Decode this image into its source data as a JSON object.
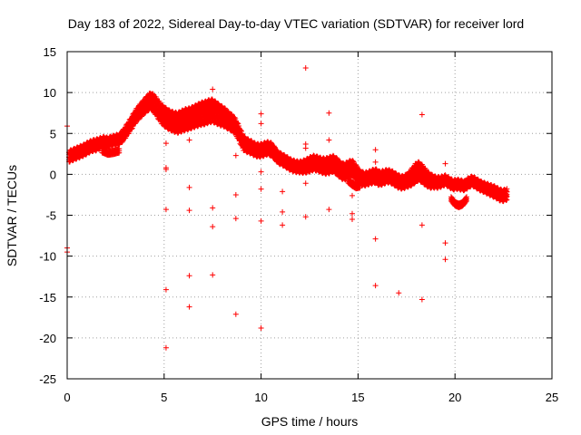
{
  "chart_data": {
    "type": "scatter",
    "title": "Day 183 of 2022, Sidereal Day-to-day VTEC variation (SDTVAR) for receiver lord",
    "xlabel": "GPS time / hours",
    "ylabel": "SDTVAR / TECUs",
    "xlim": [
      0,
      25
    ],
    "ylim": [
      -25,
      15
    ],
    "xticks": [
      0,
      5,
      10,
      15,
      20,
      25
    ],
    "xtick_labels": [
      "0",
      "5",
      "10",
      "15",
      "20",
      "25"
    ],
    "yticks": [
      -25,
      -20,
      -15,
      -10,
      -5,
      0,
      5,
      10,
      15
    ],
    "ytick_labels": [
      "-25",
      "-20",
      "-15",
      "-10",
      "-5",
      "0",
      "5",
      "10",
      "15"
    ],
    "grid": true,
    "marker": "+",
    "colors": {
      "series": "#ff0000",
      "grid": "#a0a0a0",
      "axis": "#000000"
    },
    "series": [
      {
        "name": "SDTVAR",
        "trace": [
          [
            0.1,
            2.2
          ],
          [
            0.3,
            2.4
          ],
          [
            0.5,
            2.6
          ],
          [
            0.7,
            2.8
          ],
          [
            0.9,
            3.0
          ],
          [
            1.1,
            3.3
          ],
          [
            1.3,
            3.5
          ],
          [
            1.5,
            3.6
          ],
          [
            1.7,
            3.8
          ],
          [
            1.9,
            4.0
          ],
          [
            2.1,
            3.9
          ],
          [
            2.3,
            4.1
          ],
          [
            2.5,
            4.2
          ],
          [
            2.7,
            4.3
          ],
          [
            2.9,
            4.8
          ],
          [
            3.1,
            5.5
          ],
          [
            3.3,
            6.2
          ],
          [
            3.5,
            7.0
          ],
          [
            3.7,
            7.6
          ],
          [
            3.9,
            8.1
          ],
          [
            4.1,
            8.6
          ],
          [
            4.3,
            9.0
          ],
          [
            4.5,
            8.6
          ],
          [
            4.7,
            7.9
          ],
          [
            4.9,
            7.3
          ],
          [
            5.1,
            6.9
          ],
          [
            5.3,
            6.6
          ],
          [
            5.5,
            6.4
          ],
          [
            5.7,
            6.3
          ],
          [
            5.9,
            6.5
          ],
          [
            6.1,
            6.7
          ],
          [
            6.3,
            6.8
          ],
          [
            6.5,
            7.0
          ],
          [
            6.7,
            7.2
          ],
          [
            6.9,
            7.4
          ],
          [
            7.1,
            7.5
          ],
          [
            7.3,
            7.7
          ],
          [
            7.5,
            7.8
          ],
          [
            7.7,
            7.5
          ],
          [
            7.9,
            7.2
          ],
          [
            8.1,
            7.0
          ],
          [
            8.3,
            6.6
          ],
          [
            8.5,
            6.3
          ],
          [
            8.7,
            5.8
          ],
          [
            8.9,
            4.8
          ],
          [
            9.1,
            3.8
          ],
          [
            9.3,
            3.5
          ],
          [
            9.5,
            3.3
          ],
          [
            9.7,
            3.0
          ],
          [
            9.9,
            2.9
          ],
          [
            10.1,
            3.0
          ],
          [
            10.3,
            3.2
          ],
          [
            10.5,
            3.1
          ],
          [
            10.7,
            2.6
          ],
          [
            10.9,
            2.0
          ],
          [
            11.1,
            1.8
          ],
          [
            11.3,
            1.5
          ],
          [
            11.5,
            1.2
          ],
          [
            11.7,
            1.0
          ],
          [
            11.9,
            0.9
          ],
          [
            12.1,
            0.9
          ],
          [
            12.3,
            1.0
          ],
          [
            12.5,
            1.2
          ],
          [
            12.7,
            1.4
          ],
          [
            12.9,
            1.3
          ],
          [
            13.1,
            1.1
          ],
          [
            13.3,
            1.0
          ],
          [
            13.5,
            1.1
          ],
          [
            13.7,
            1.3
          ],
          [
            13.9,
            1.0
          ],
          [
            14.1,
            0.5
          ],
          [
            14.3,
            0.3
          ],
          [
            14.5,
            0.6
          ],
          [
            14.7,
            0.8
          ],
          [
            14.9,
            0.2
          ],
          [
            15.1,
            -0.4
          ],
          [
            15.3,
            -0.6
          ],
          [
            15.5,
            -0.5
          ],
          [
            15.7,
            -0.3
          ],
          [
            15.9,
            -0.2
          ],
          [
            16.1,
            -0.5
          ],
          [
            16.3,
            -0.4
          ],
          [
            16.5,
            -0.2
          ],
          [
            16.7,
            -0.3
          ],
          [
            16.9,
            -0.6
          ],
          [
            17.1,
            -0.9
          ],
          [
            17.3,
            -1.0
          ],
          [
            17.5,
            -0.8
          ],
          [
            17.7,
            -0.5
          ],
          [
            17.9,
            0.0
          ],
          [
            18.1,
            0.4
          ],
          [
            18.3,
            0.1
          ],
          [
            18.5,
            -0.4
          ],
          [
            18.7,
            -0.8
          ],
          [
            18.9,
            -0.9
          ],
          [
            19.1,
            -1.0
          ],
          [
            19.3,
            -0.9
          ],
          [
            19.5,
            -0.7
          ],
          [
            19.7,
            -1.0
          ],
          [
            19.9,
            -1.3
          ],
          [
            20.1,
            -1.2
          ],
          [
            20.3,
            -1.3
          ],
          [
            20.5,
            -1.4
          ],
          [
            20.7,
            -1.0
          ],
          [
            20.9,
            -0.8
          ],
          [
            21.1,
            -1.1
          ],
          [
            21.3,
            -1.4
          ],
          [
            21.5,
            -1.6
          ],
          [
            21.7,
            -1.8
          ],
          [
            21.9,
            -2.0
          ],
          [
            22.1,
            -2.2
          ],
          [
            22.3,
            -2.5
          ],
          [
            22.5,
            -2.6
          ],
          [
            22.7,
            -2.4
          ]
        ],
        "trace_spread": [
          [
            0.1,
            1.2
          ],
          [
            0.5,
            1.2
          ],
          [
            1.0,
            1.2
          ],
          [
            1.5,
            1.2
          ],
          [
            2.0,
            1.0
          ],
          [
            2.5,
            1.0
          ],
          [
            2.9,
            1.2
          ],
          [
            3.5,
            1.4
          ],
          [
            4.0,
            1.6
          ],
          [
            4.5,
            2.0
          ],
          [
            5.0,
            2.2
          ],
          [
            5.5,
            2.2
          ],
          [
            6.0,
            2.4
          ],
          [
            6.5,
            2.4
          ],
          [
            7.0,
            2.6
          ],
          [
            7.5,
            2.6
          ],
          [
            8.0,
            2.2
          ],
          [
            8.5,
            1.8
          ],
          [
            9.0,
            1.6
          ],
          [
            9.5,
            1.4
          ],
          [
            10.0,
            1.4
          ],
          [
            10.5,
            1.4
          ],
          [
            11.0,
            1.2
          ],
          [
            12.0,
            1.2
          ],
          [
            12.5,
            1.6
          ],
          [
            13.0,
            1.6
          ],
          [
            13.5,
            1.8
          ],
          [
            14.0,
            1.8
          ],
          [
            14.5,
            1.8
          ],
          [
            15.0,
            1.6
          ],
          [
            15.5,
            1.4
          ],
          [
            16.0,
            1.6
          ],
          [
            16.5,
            1.4
          ],
          [
            17.0,
            1.4
          ],
          [
            17.5,
            1.4
          ],
          [
            18.0,
            2.2
          ],
          [
            18.5,
            1.8
          ],
          [
            19.0,
            1.2
          ],
          [
            19.5,
            1.0
          ],
          [
            20.0,
            1.0
          ],
          [
            20.5,
            1.0
          ],
          [
            21.0,
            1.0
          ],
          [
            21.5,
            1.0
          ],
          [
            22.0,
            1.2
          ],
          [
            22.5,
            1.2
          ],
          [
            22.9,
            1.2
          ]
        ],
        "secondary_segments": [
          [
            [
              1.8,
              2.9
            ],
            [
              2.1,
              2.6
            ],
            [
              2.4,
              2.7
            ],
            [
              2.7,
              2.9
            ]
          ],
          [
            [
              14.5,
              -0.8
            ],
            [
              14.7,
              -1.2
            ],
            [
              14.9,
              -1.5
            ],
            [
              15.1,
              -1.4
            ]
          ],
          [
            [
              19.8,
              -3.0
            ],
            [
              20.0,
              -3.6
            ],
            [
              20.2,
              -3.8
            ],
            [
              20.4,
              -3.6
            ],
            [
              20.6,
              -3.0
            ]
          ]
        ],
        "outliers": [
          [
            0.0,
            5.9
          ],
          [
            0.0,
            -9.0
          ],
          [
            0.0,
            -9.5
          ],
          [
            5.1,
            3.8
          ],
          [
            5.1,
            0.8
          ],
          [
            5.1,
            0.6
          ],
          [
            5.1,
            -4.3
          ],
          [
            5.1,
            -14.1
          ],
          [
            5.1,
            -21.2
          ],
          [
            6.3,
            4.2
          ],
          [
            6.3,
            -1.6
          ],
          [
            6.3,
            -4.4
          ],
          [
            6.3,
            -12.4
          ],
          [
            6.3,
            -16.2
          ],
          [
            7.5,
            10.4
          ],
          [
            7.5,
            -4.1
          ],
          [
            7.5,
            -6.4
          ],
          [
            7.5,
            -12.3
          ],
          [
            8.7,
            2.3
          ],
          [
            8.7,
            -2.5
          ],
          [
            8.7,
            -5.4
          ],
          [
            8.7,
            -17.1
          ],
          [
            10.0,
            7.4
          ],
          [
            10.0,
            6.2
          ],
          [
            10.0,
            0.3
          ],
          [
            10.0,
            -1.8
          ],
          [
            10.0,
            -5.7
          ],
          [
            10.0,
            -18.8
          ],
          [
            11.1,
            -2.1
          ],
          [
            11.1,
            -4.6
          ],
          [
            11.1,
            -6.2
          ],
          [
            12.3,
            13.0
          ],
          [
            12.3,
            3.7
          ],
          [
            12.3,
            3.2
          ],
          [
            12.3,
            -1.1
          ],
          [
            12.3,
            -5.2
          ],
          [
            13.5,
            7.5
          ],
          [
            13.5,
            4.2
          ],
          [
            13.5,
            -4.3
          ],
          [
            14.7,
            -2.6
          ],
          [
            14.7,
            -4.8
          ],
          [
            14.7,
            -5.5
          ],
          [
            15.9,
            3.0
          ],
          [
            15.9,
            1.5
          ],
          [
            15.9,
            -7.9
          ],
          [
            15.9,
            -13.6
          ],
          [
            17.1,
            -14.5
          ],
          [
            18.3,
            7.3
          ],
          [
            18.3,
            -6.2
          ],
          [
            18.3,
            -15.3
          ],
          [
            19.5,
            1.3
          ],
          [
            19.5,
            -8.4
          ],
          [
            19.5,
            -10.4
          ]
        ]
      }
    ]
  }
}
